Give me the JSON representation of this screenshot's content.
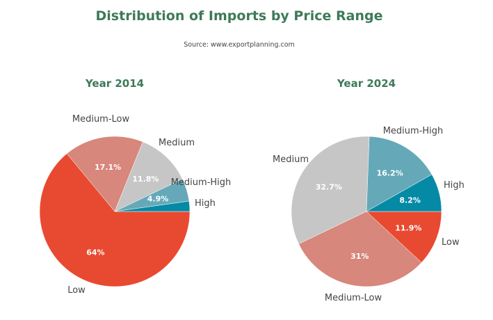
{
  "chart_data": {
    "type": "pie",
    "title": "Distribution of Imports by Price Range",
    "subtitle": "Source: www.exportplanning.com",
    "colors": {
      "Low": "#e84a31",
      "Medium-Low": "#d7877b",
      "Medium": "#c6c6c6",
      "Medium-High": "#65a9b9",
      "High": "#058aa6",
      "title": "#3d7a57"
    },
    "charts": [
      {
        "title": "Year 2014",
        "categories": [
          "Low",
          "Medium-Low",
          "Medium",
          "Medium-High",
          "High"
        ],
        "values": [
          64,
          17.1,
          11.8,
          4.9,
          2.2
        ],
        "value_labels": [
          "64%",
          "17.1%",
          "11.8%",
          "4.9%",
          ""
        ]
      },
      {
        "title": "Year 2024",
        "categories": [
          "Low",
          "Medium-Low",
          "Medium",
          "Medium-High",
          "High"
        ],
        "values": [
          11.9,
          31,
          32.7,
          16.2,
          8.2
        ],
        "value_labels": [
          "11.9%",
          "31%",
          "32.7%",
          "16.2%",
          "8.2%"
        ]
      }
    ]
  }
}
